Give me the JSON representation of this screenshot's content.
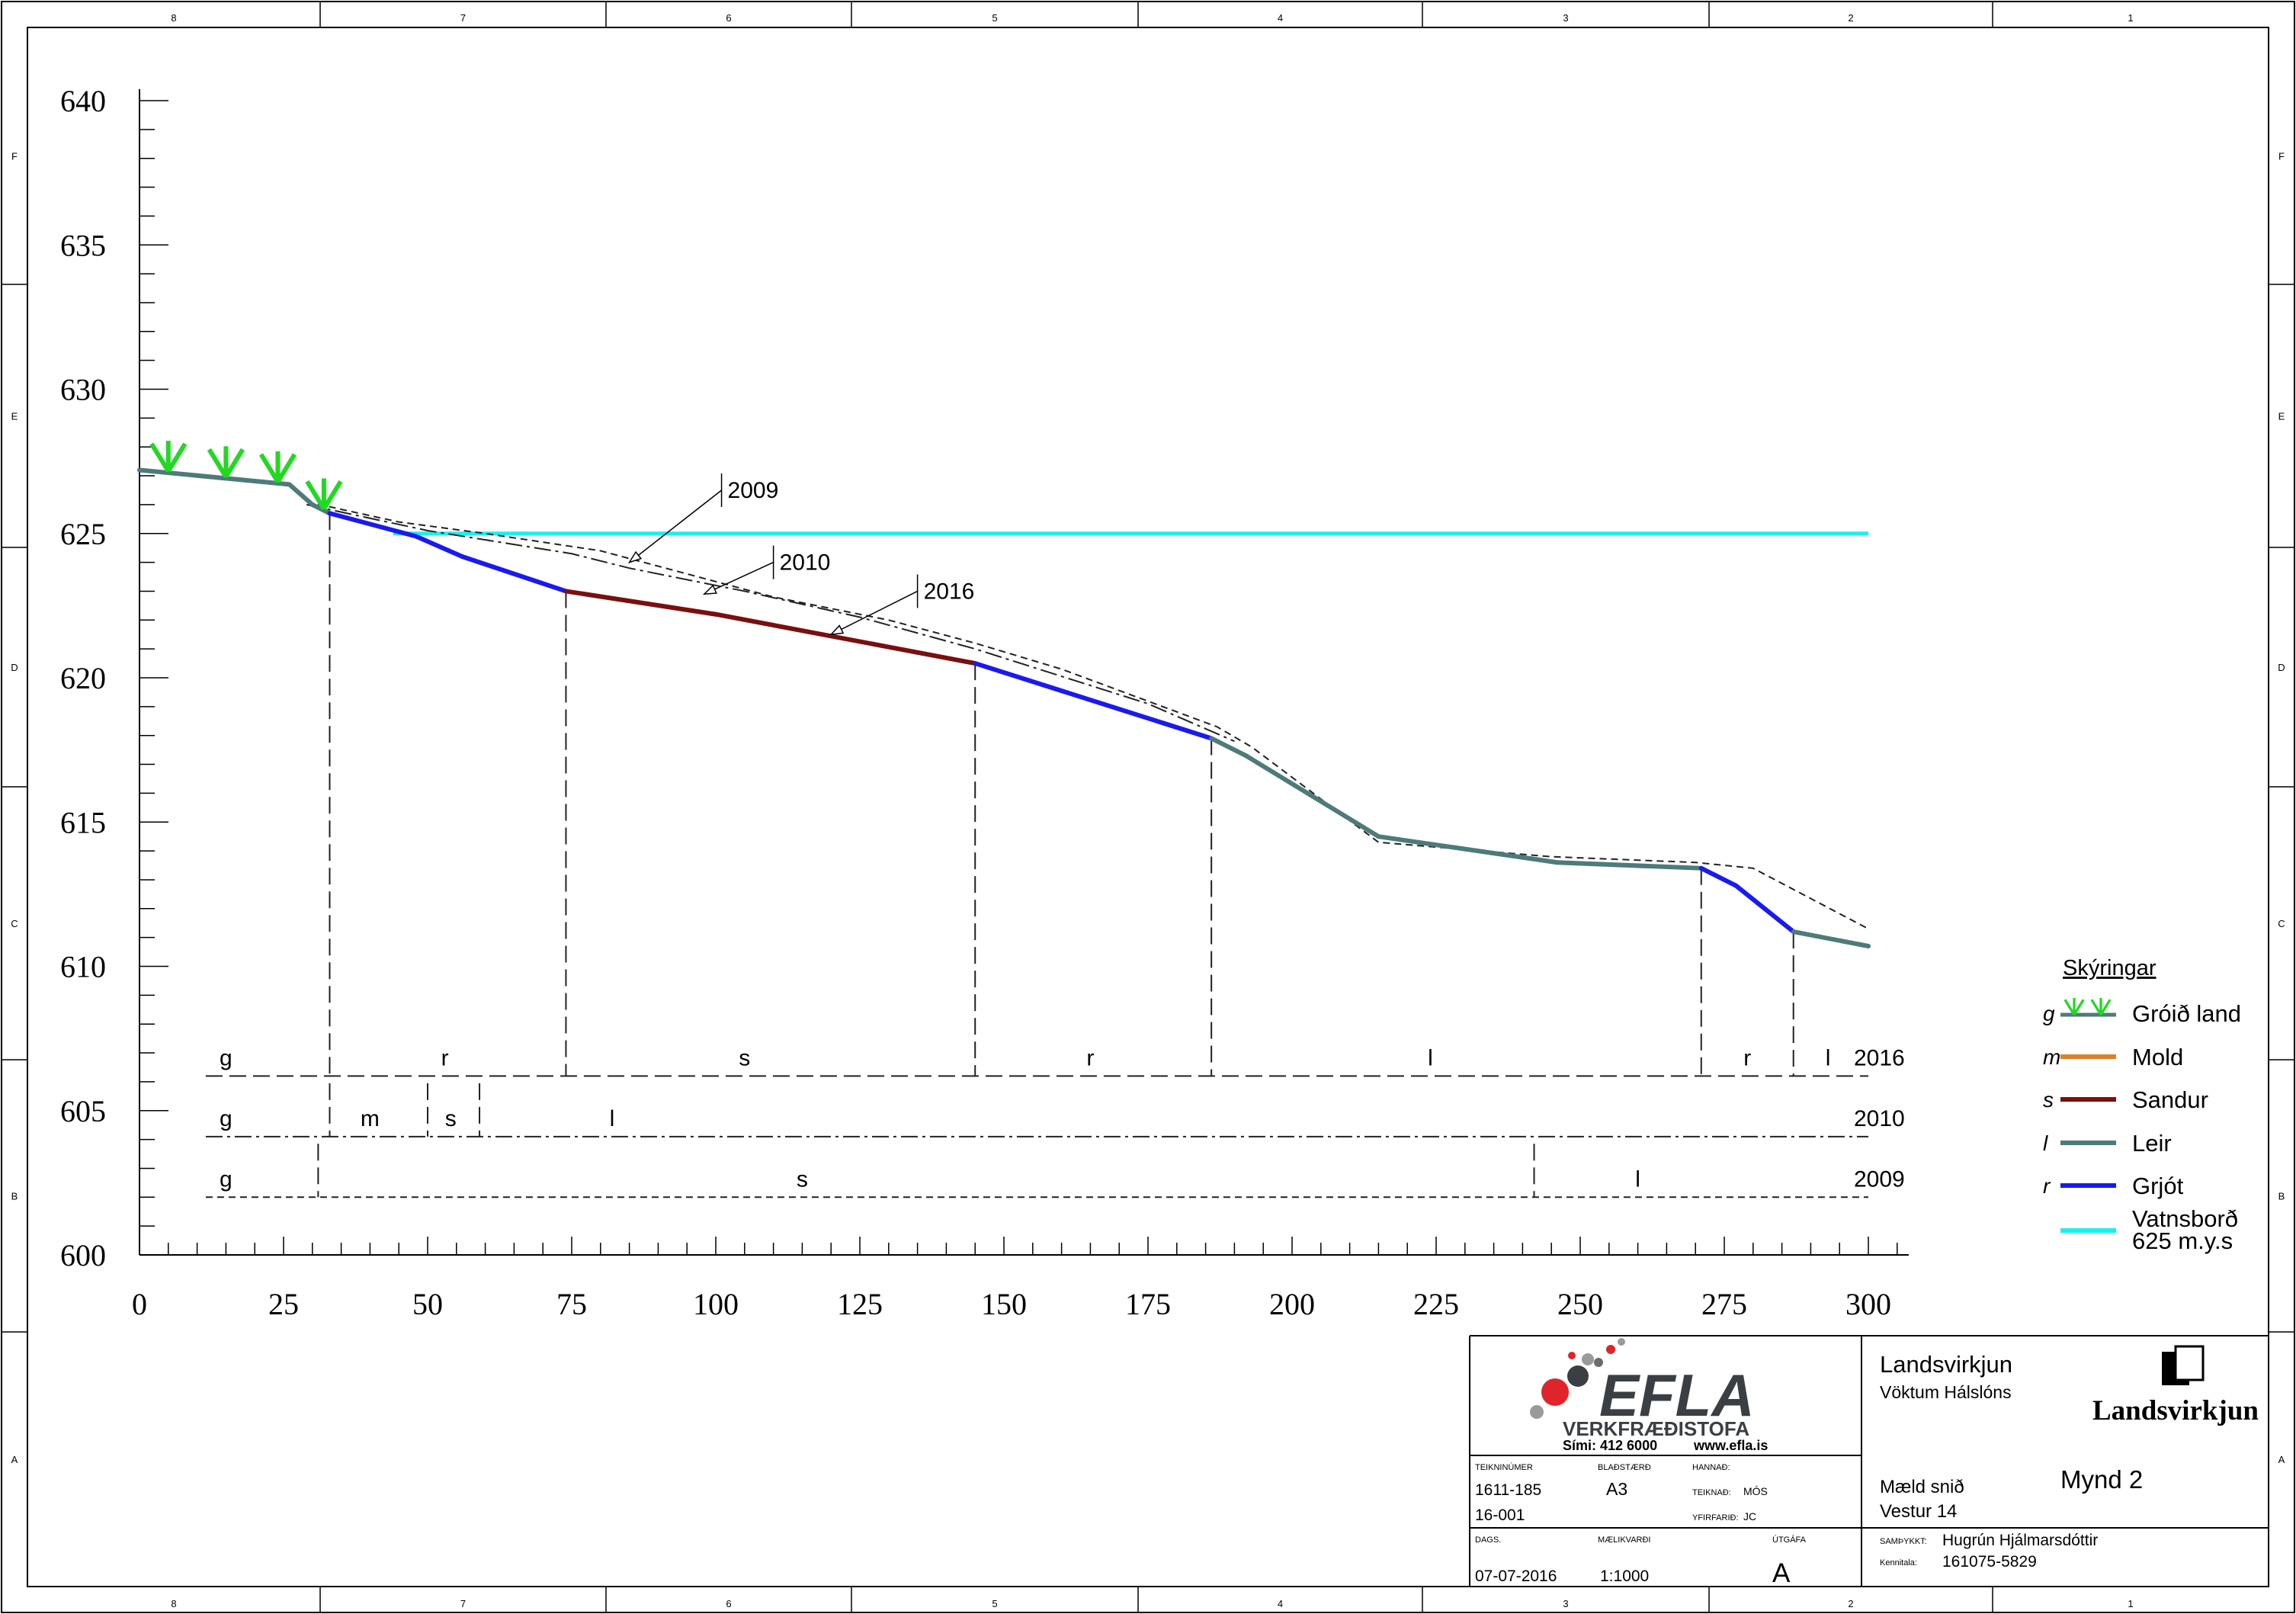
{
  "border": {
    "col_labels": [
      "8",
      "7",
      "6",
      "5",
      "4",
      "3",
      "2",
      "1"
    ],
    "row_labels_left": [
      "F",
      "E",
      "D",
      "C",
      "B",
      "A"
    ],
    "row_labels_right": [
      "F",
      "E",
      "D",
      "C",
      "B",
      "A"
    ]
  },
  "chart_data": {
    "type": "line",
    "ylim": [
      600,
      640
    ],
    "xlim": [
      0,
      300
    ],
    "y_ticks": [
      "600",
      "605",
      "610",
      "615",
      "620",
      "625",
      "630",
      "635",
      "640"
    ],
    "x_ticks": [
      "0",
      "25",
      "50",
      "75",
      "100",
      "125",
      "150",
      "175",
      "200",
      "225",
      "250",
      "275",
      "300"
    ],
    "water_level": {
      "y": 625,
      "x_start": 44,
      "x_end": 300,
      "color": "#19f0f0"
    },
    "profile_2016": [
      {
        "x": 0,
        "y": 627.2,
        "mat": "l"
      },
      {
        "x": 26,
        "y": 626.7,
        "mat": "l"
      },
      {
        "x": 30,
        "y": 626.0,
        "mat": "l"
      },
      {
        "x": 33,
        "y": 625.7,
        "mat": "l"
      },
      {
        "x": 48,
        "y": 624.9,
        "mat": "r"
      },
      {
        "x": 56,
        "y": 624.2,
        "mat": "r"
      },
      {
        "x": 74,
        "y": 623.0,
        "mat": "r"
      },
      {
        "x": 100,
        "y": 622.2,
        "mat": "s"
      },
      {
        "x": 145,
        "y": 620.5,
        "mat": "s"
      },
      {
        "x": 186,
        "y": 617.9,
        "mat": "r"
      },
      {
        "x": 192,
        "y": 617.3,
        "mat": "l"
      },
      {
        "x": 215,
        "y": 614.5,
        "mat": "l"
      },
      {
        "x": 246,
        "y": 613.6,
        "mat": "l"
      },
      {
        "x": 271,
        "y": 613.4,
        "mat": "l"
      },
      {
        "x": 277,
        "y": 612.8,
        "mat": "r"
      },
      {
        "x": 287,
        "y": 611.2,
        "mat": "r"
      },
      {
        "x": 300,
        "y": 610.7,
        "mat": "l"
      }
    ],
    "profile_2009": [
      [
        29,
        626.1
      ],
      [
        45,
        625.4
      ],
      [
        60,
        625.0
      ],
      [
        80,
        624.4
      ],
      [
        110,
        622.8
      ],
      [
        130,
        622.0
      ],
      [
        145,
        621.2
      ],
      [
        160,
        620.3
      ],
      [
        187,
        618.3
      ],
      [
        193,
        617.6
      ],
      [
        215,
        614.3
      ],
      [
        245,
        613.8
      ],
      [
        270,
        613.6
      ],
      [
        275,
        613.5
      ],
      [
        280,
        613.4
      ],
      [
        300,
        611.3
      ]
    ],
    "profile_2010": [
      [
        29,
        626.0
      ],
      [
        50,
        625.1
      ],
      [
        75,
        624.3
      ],
      [
        85,
        623.8
      ],
      [
        105,
        623.0
      ],
      [
        125,
        622.1
      ],
      [
        145,
        621.0
      ],
      [
        175,
        619.1
      ],
      [
        190,
        617.8
      ]
    ],
    "callouts": [
      {
        "label": "2009",
        "target": [
          85,
          624.0
        ],
        "knee": [
          101,
          626.5
        ]
      },
      {
        "label": "2010",
        "target": [
          98,
          622.9
        ],
        "knee": [
          110,
          624.0
        ]
      },
      {
        "label": "2016",
        "target": [
          120,
          621.5
        ],
        "knee": [
          135,
          623.0
        ]
      }
    ],
    "vegetation_x": [
      5,
      15,
      24,
      32
    ],
    "strata_rows": [
      {
        "year": "2016",
        "style": "long-dash",
        "y": 606.2,
        "breaks": [
          33,
          74,
          145,
          186,
          271,
          287
        ],
        "labels": [
          {
            "x": 15,
            "t": "g"
          },
          {
            "x": 53,
            "t": "r"
          },
          {
            "x": 105,
            "t": "s"
          },
          {
            "x": 165,
            "t": "r"
          },
          {
            "x": 224,
            "t": "l"
          },
          {
            "x": 279,
            "t": "r"
          },
          {
            "x": 293,
            "t": "l"
          }
        ]
      },
      {
        "year": "2010",
        "style": "dash-dot",
        "y": 604.1,
        "breaks": [
          33,
          50,
          59
        ],
        "labels": [
          {
            "x": 15,
            "t": "g"
          },
          {
            "x": 40,
            "t": "m"
          },
          {
            "x": 54,
            "t": "s"
          },
          {
            "x": 82,
            "t": "l"
          }
        ]
      },
      {
        "year": "2009",
        "style": "short-dash",
        "y": 602.0,
        "breaks": [
          31,
          242
        ],
        "labels": [
          {
            "x": 15,
            "t": "g"
          },
          {
            "x": 115,
            "t": "s"
          },
          {
            "x": 260,
            "t": "l"
          }
        ]
      }
    ]
  },
  "legend": {
    "title": "Skýringar",
    "items": [
      {
        "code": "g",
        "label": "Gróið land",
        "color": "#4e7a7a",
        "kind": "vegetation"
      },
      {
        "code": "m",
        "label": "Mold",
        "color": "#d9812a",
        "kind": "line"
      },
      {
        "code": "s",
        "label": "Sandur",
        "color": "#7a0f0f",
        "kind": "line"
      },
      {
        "code": "l",
        "label": "Leir",
        "color": "#4e7a7a",
        "kind": "line"
      },
      {
        "code": "r",
        "label": "Grjót",
        "color": "#1a1aee",
        "kind": "line"
      },
      {
        "code": "",
        "label": "Vatnsborð",
        "label2": "625 m.y.s",
        "color": "#19f0f0",
        "kind": "line"
      }
    ]
  },
  "colors": {
    "leir": "#4e7a7a",
    "grjot": "#1a1aee",
    "sandur": "#7a0f0f",
    "mold": "#d9812a",
    "water": "#19f0f0",
    "vegetation": "#22d822",
    "logo_red": "#e0242c",
    "logo_grey": "#6c6c6c",
    "logo_dark": "#3a3f44"
  },
  "title_block": {
    "logo_text": "EFLA",
    "logo_sub": "VERKFRÆÐISTOFA",
    "phone": "Sími: 412 6000",
    "web": "www.efla.is",
    "client": "Landsvirkjun",
    "project": "Vöktum Hálslóns",
    "client_logo_text": "Landsvirkjun",
    "teikninumer_label": "TEIKNINÚMER",
    "teikninumer_1": "1611-185",
    "teikninumer_2": "16-001",
    "bladstaerd_label": "BLAÐSTÆRÐ",
    "bladstaerd": "A3",
    "hannad_label": "HANNAÐ:",
    "teiknad_label": "TEIKNAÐ:",
    "teiknad": "MÓS",
    "yfirfarid_label": "YFIRFARIÐ:",
    "yfirfarid": "JC",
    "drawing_title_1": "Mæld snið",
    "drawing_title_2": "Vestur 14",
    "figure": "Mynd 2",
    "dags_label": "DAGS.",
    "dags": "07-07-2016",
    "maelikvardi_label": "MÆLIKVARÐI",
    "maelikvardi": "1:1000",
    "utgafa_label": "ÚTGÁFA",
    "utgafa": "A",
    "samthykkt_label": "SAMÞYKKT:",
    "samthykkt": "Hugrún Hjálmarsdóttir",
    "kennitala_label": "Kennitala:",
    "kennitala": "161075-5829"
  }
}
